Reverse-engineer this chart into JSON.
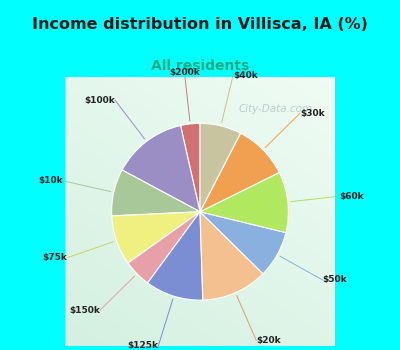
{
  "title": "Income distribution in Villisca, IA (%)",
  "subtitle": "All residents",
  "watermark": "City-Data.com",
  "labels": [
    "$200k",
    "$100k",
    "$10k",
    "$75k",
    "$150k",
    "$125k",
    "$20k",
    "$50k",
    "$60k",
    "$30k",
    "$40k"
  ],
  "sizes": [
    3.5,
    13.5,
    8.5,
    9.0,
    5.0,
    10.5,
    12.0,
    8.5,
    11.0,
    10.0,
    7.5
  ],
  "colors": [
    "#d07070",
    "#9b8ec4",
    "#a8c89a",
    "#f0f080",
    "#e8a0a8",
    "#7b8ed4",
    "#f4c090",
    "#8ab0e0",
    "#b0e860",
    "#f0a050",
    "#c8c4a0"
  ],
  "line_colors": [
    "#c08080",
    "#9b8ec4",
    "#a8c89a",
    "#d0d060",
    "#e8a0a8",
    "#7b8ed4",
    "#d4a070",
    "#8ab0e0",
    "#b0e060",
    "#f0a050",
    "#c8c090"
  ],
  "bg_cyan": "#00ffff",
  "bg_chart_tl": "#f0faf8",
  "bg_chart_br": "#c8e8d8",
  "title_color": "#1a1a1a",
  "subtitle_color": "#20aa80",
  "watermark_color": "#b0c8c8",
  "startangle": 90
}
